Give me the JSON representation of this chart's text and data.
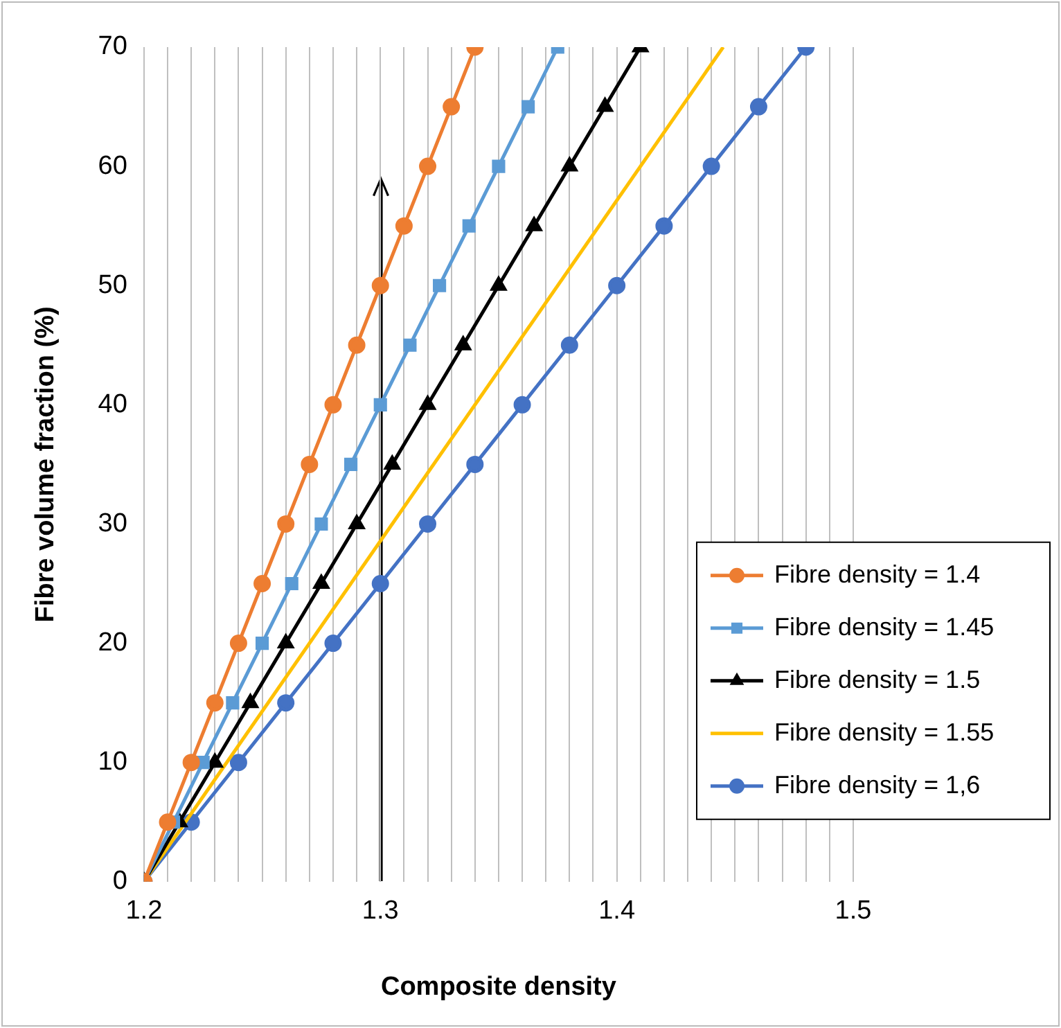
{
  "chart_data": {
    "type": "line",
    "xlabel": "Composite density",
    "ylabel": "Fibre volume fraction (%)",
    "xlim": [
      1.2,
      1.5
    ],
    "ylim": [
      0,
      70
    ],
    "xticks": [
      1.2,
      {
        "value": 1.21,
        "label": null
      },
      {
        "value": 1.22,
        "label": null
      },
      {
        "value": 1.23,
        "label": null
      },
      {
        "value": 1.24,
        "label": null
      },
      {
        "value": 1.25,
        "label": null
      },
      {
        "value": 1.26,
        "label": null
      },
      {
        "value": 1.27,
        "label": null
      },
      {
        "value": 1.28,
        "label": null
      },
      {
        "value": 1.29,
        "label": null
      },
      1.3,
      {
        "value": 1.31,
        "label": null
      },
      {
        "value": 1.32,
        "label": null
      },
      {
        "value": 1.33,
        "label": null
      },
      {
        "value": 1.34,
        "label": null
      },
      {
        "value": 1.35,
        "label": null
      },
      {
        "value": 1.36,
        "label": null
      },
      {
        "value": 1.37,
        "label": null
      },
      {
        "value": 1.38,
        "label": null
      },
      {
        "value": 1.39,
        "label": null
      },
      1.4,
      {
        "value": 1.41,
        "label": null
      },
      {
        "value": 1.42,
        "label": null
      },
      {
        "value": 1.43,
        "label": null
      },
      {
        "value": 1.44,
        "label": null
      },
      {
        "value": 1.45,
        "label": null
      },
      {
        "value": 1.46,
        "label": null
      },
      {
        "value": 1.47,
        "label": null
      },
      {
        "value": 1.48,
        "label": null
      },
      {
        "value": 1.49,
        "label": null
      },
      1.5
    ],
    "yticks": [
      0,
      10,
      20,
      30,
      40,
      50,
      60,
      70
    ],
    "grid": "x",
    "legend": "bottom right",
    "series": [
      {
        "name": "Fibre density = 1.4",
        "color": "#ed7d31",
        "marker": "circle",
        "x": [
          1.2,
          1.21,
          1.22,
          1.23,
          1.24,
          1.25,
          1.26,
          1.27,
          1.28,
          1.29,
          1.3,
          1.31,
          1.32,
          1.33,
          1.34
        ],
        "values": [
          0,
          5,
          10,
          15,
          20,
          25,
          30,
          35,
          40,
          45,
          50,
          55,
          60,
          65,
          70
        ]
      },
      {
        "name": "Fibre density = 1.45",
        "color": "#5b9bd5",
        "marker": "square",
        "x": [
          1.2,
          1.2125,
          1.225,
          1.2375,
          1.25,
          1.2625,
          1.275,
          1.2875,
          1.3,
          1.3125,
          1.325,
          1.3375,
          1.35,
          1.3625,
          1.375
        ],
        "values": [
          0,
          5,
          10,
          15,
          20,
          25,
          30,
          35,
          40,
          45,
          50,
          55,
          60,
          65,
          70
        ]
      },
      {
        "name": "Fibre density = 1.5",
        "color": "#000000",
        "marker": "triangle",
        "x": [
          1.2,
          1.215,
          1.23,
          1.245,
          1.26,
          1.275,
          1.29,
          1.305,
          1.32,
          1.335,
          1.35,
          1.365,
          1.38,
          1.395,
          1.41
        ],
        "values": [
          0,
          5,
          10,
          15,
          20,
          25,
          30,
          35,
          40,
          45,
          50,
          55,
          60,
          65,
          70
        ]
      },
      {
        "name": "Fibre density = 1.55",
        "color": "#ffc000",
        "marker": "none",
        "x": [
          1.2,
          1.445
        ],
        "values": [
          0,
          70
        ]
      },
      {
        "name": "Fibre density = 1,6",
        "color": "#4472c4",
        "marker": "circle",
        "x": [
          1.2,
          1.22,
          1.24,
          1.26,
          1.28,
          1.3,
          1.32,
          1.34,
          1.36,
          1.38,
          1.4,
          1.42,
          1.44,
          1.46,
          1.48
        ],
        "values": [
          0,
          5,
          10,
          15,
          20,
          25,
          30,
          35,
          40,
          45,
          50,
          55,
          60,
          65,
          70
        ]
      }
    ]
  }
}
